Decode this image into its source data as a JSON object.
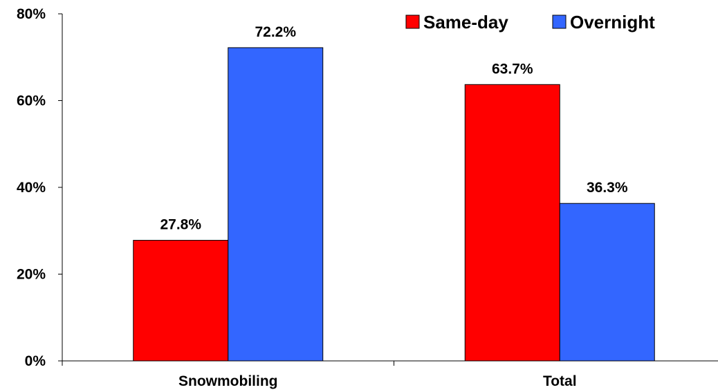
{
  "chart_data": {
    "type": "bar",
    "categories": [
      "Snowmobiling",
      "Total"
    ],
    "series": [
      {
        "name": "Same-day",
        "values": [
          27.8,
          63.7
        ],
        "color": "#ff0000"
      },
      {
        "name": "Overnight",
        "values": [
          72.2,
          36.3
        ],
        "color": "#3366ff"
      }
    ],
    "data_labels": [
      [
        "27.8%",
        "63.7%"
      ],
      [
        "72.2%",
        "36.3%"
      ]
    ],
    "y_ticks": [
      0,
      20,
      40,
      60,
      80
    ],
    "y_tick_labels": [
      "0%",
      "20%",
      "40%",
      "60%",
      "80%"
    ],
    "ylim": [
      0,
      80
    ],
    "legend_position": "top-right",
    "grid": false
  }
}
